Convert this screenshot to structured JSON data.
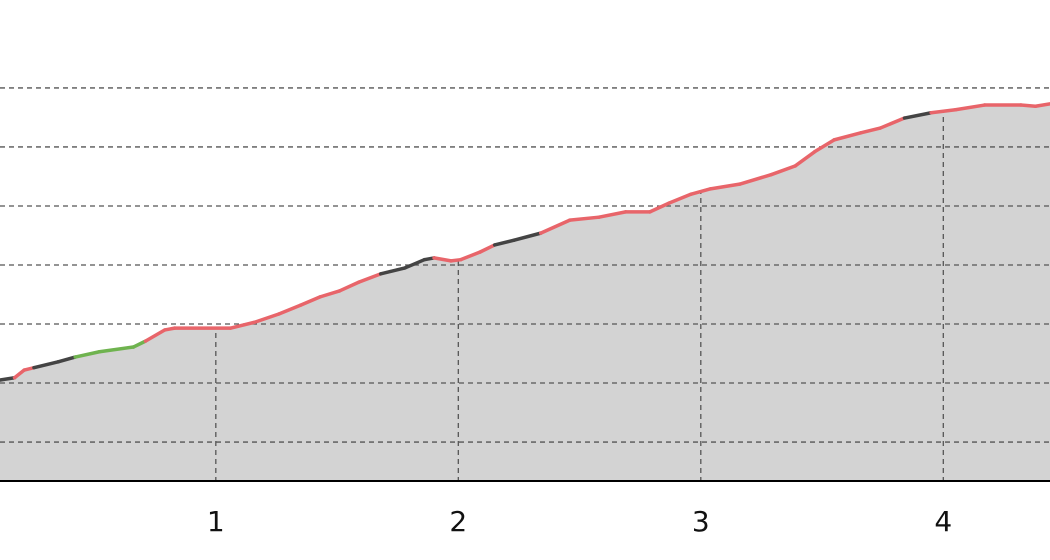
{
  "chart_data": {
    "type": "area",
    "x": [
      0.11,
      0.17,
      0.21,
      0.25,
      0.35,
      0.42,
      0.52,
      0.66,
      0.71,
      0.79,
      0.83,
      1.06,
      1.16,
      1.26,
      1.35,
      1.43,
      1.51,
      1.59,
      1.68,
      1.78,
      1.86,
      1.9,
      1.97,
      2.01,
      2.09,
      2.15,
      2.23,
      2.34,
      2.46,
      2.58,
      2.69,
      2.79,
      2.87,
      2.96,
      3.04,
      3.16,
      3.29,
      3.39,
      3.47,
      3.55,
      3.66,
      3.74,
      3.84,
      3.95,
      4.05,
      4.17,
      4.32,
      4.38,
      4.44
    ],
    "values": [
      2.05,
      2.09,
      2.22,
      2.26,
      2.36,
      2.44,
      2.53,
      2.61,
      2.71,
      2.9,
      2.93,
      2.93,
      3.03,
      3.17,
      3.32,
      3.46,
      3.56,
      3.71,
      3.85,
      3.95,
      4.09,
      4.12,
      4.07,
      4.09,
      4.22,
      4.34,
      4.42,
      4.54,
      4.76,
      4.81,
      4.9,
      4.9,
      5.05,
      5.2,
      5.29,
      5.37,
      5.53,
      5.68,
      5.92,
      6.12,
      6.24,
      6.32,
      6.49,
      6.58,
      6.63,
      6.71,
      6.71,
      6.69,
      6.73
    ],
    "segment_colors": [
      "#444444",
      "#e8656a",
      "#e8656a",
      "#444444",
      "#444444",
      "#6fb34f",
      "#6fb34f",
      "#6fb34f",
      "#e8656a",
      "#e8656a",
      "#e8656a",
      "#e8656a",
      "#e8656a",
      "#e8656a",
      "#e8656a",
      "#e8656a",
      "#e8656a",
      "#e8656a",
      "#444444",
      "#444444",
      "#444444",
      "#e8656a",
      "#e8656a",
      "#e8656a",
      "#e8656a",
      "#444444",
      "#444444",
      "#e8656a",
      "#e8656a",
      "#e8656a",
      "#e8656a",
      "#e8656a",
      "#e8656a",
      "#e8656a",
      "#e8656a",
      "#e8656a",
      "#e8656a",
      "#e8656a",
      "#e8656a",
      "#e8656a",
      "#e8656a",
      "#e8656a",
      "#444444",
      "#e8656a",
      "#e8656a",
      "#e8656a",
      "#e8656a",
      "#e8656a"
    ],
    "fill": "#d3d3d3",
    "xlim": [
      0.11,
      4.44
    ],
    "xticks": [
      1,
      2,
      3,
      4
    ],
    "ylim": [
      0.34,
      8.49
    ],
    "yticks": [
      1,
      2,
      3,
      4,
      5,
      6,
      7
    ],
    "grid": true
  }
}
